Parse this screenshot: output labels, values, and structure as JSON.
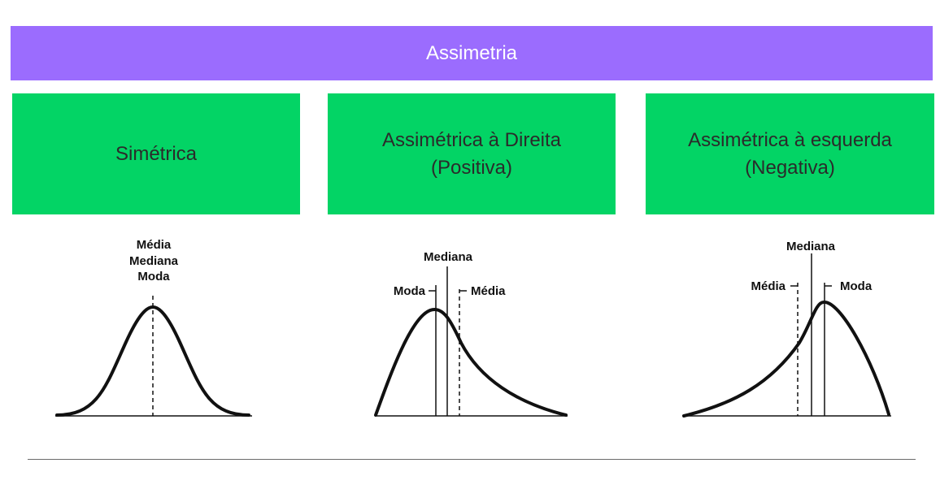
{
  "colors": {
    "banner": "#9b6cfe",
    "card": "#03d465",
    "curve": "#111111"
  },
  "banner": {
    "title": "Assimetria"
  },
  "cards": [
    {
      "lines": [
        "Simétrica"
      ]
    },
    {
      "lines": [
        "Assimétrica à Direita",
        "(Positiva)"
      ]
    },
    {
      "lines": [
        "Assimétrica à esquerda",
        "(Negativa)"
      ]
    }
  ],
  "panels": {
    "symmetric": {
      "labels": [
        "Média",
        "Mediana",
        "Moda"
      ]
    },
    "positive": {
      "mediana": "Mediana",
      "moda": "Moda",
      "media": "Média"
    },
    "negative": {
      "mediana": "Mediana",
      "media": "Média",
      "moda": "Moda"
    }
  }
}
